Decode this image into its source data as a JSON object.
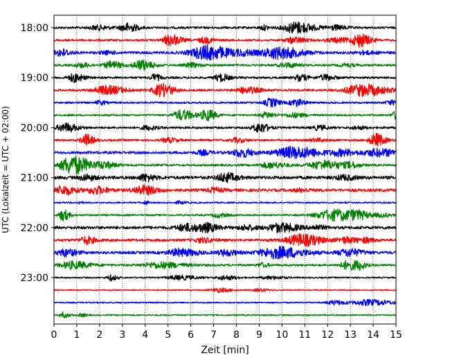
{
  "chart_data": {
    "type": "line",
    "title": "",
    "xlabel": "Zeit  [min]",
    "ylabel": "UTC (Lokalzeit = UTC + 02:00)",
    "xlim": [
      0,
      15
    ],
    "x_ticks": [
      0,
      1,
      2,
      3,
      4,
      5,
      6,
      7,
      8,
      9,
      10,
      11,
      12,
      13,
      14,
      15
    ],
    "x_grid": true,
    "y_ticks": [
      "18:00",
      "19:00",
      "20:00",
      "21:00",
      "22:00",
      "23:00"
    ],
    "trace_interval_min": 15,
    "trace_colors": [
      "#000000",
      "#ff0000",
      "#0000ff",
      "#008000"
    ],
    "series": [
      {
        "start_utc": "18:00",
        "color": "#000000",
        "bursts": [
          [
            1.9,
            0.4,
            3
          ],
          [
            3.2,
            0.35,
            6
          ],
          [
            9.2,
            0.2,
            3
          ],
          [
            10.6,
            0.6,
            8
          ],
          [
            12.3,
            0.4,
            3
          ]
        ],
        "noise": 1.5
      },
      {
        "start_utc": "18:15",
        "color": "#ff0000",
        "bursts": [
          [
            5.1,
            0.35,
            8
          ],
          [
            6.6,
            0.3,
            4
          ],
          [
            10.5,
            0.4,
            4
          ],
          [
            13.4,
            0.35,
            9
          ],
          [
            12.4,
            0.5,
            3
          ]
        ],
        "noise": 1.5
      },
      {
        "start_utc": "18:30",
        "color": "#0000ff",
        "bursts": [
          [
            0.3,
            0.3,
            5
          ],
          [
            2.3,
            0.3,
            2
          ],
          [
            6.7,
            0.8,
            10
          ],
          [
            9.8,
            0.8,
            8
          ],
          [
            8.3,
            0.4,
            3
          ],
          [
            13.6,
            0.4,
            2
          ]
        ],
        "noise": 1.8
      },
      {
        "start_utc": "18:45",
        "color": "#008000",
        "bursts": [
          [
            1.2,
            0.3,
            3
          ],
          [
            2.5,
            0.35,
            5
          ],
          [
            3.8,
            0.4,
            7
          ],
          [
            6.0,
            0.3,
            3
          ],
          [
            10.2,
            0.4,
            3
          ],
          [
            12.8,
            0.3,
            2
          ]
        ],
        "noise": 1.5
      },
      {
        "start_utc": "19:00",
        "color": "#000000",
        "bursts": [
          [
            0.9,
            0.3,
            6
          ],
          [
            4.4,
            0.2,
            5
          ],
          [
            7.3,
            0.3,
            5
          ],
          [
            10.8,
            0.3,
            4
          ],
          [
            11.9,
            0.3,
            4
          ]
        ],
        "noise": 1.5
      },
      {
        "start_utc": "19:15",
        "color": "#ff0000",
        "bursts": [
          [
            2.3,
            0.6,
            6
          ],
          [
            4.7,
            0.4,
            9
          ],
          [
            8.4,
            0.5,
            4
          ],
          [
            13.5,
            0.8,
            8
          ]
        ],
        "noise": 1.5
      },
      {
        "start_utc": "19:30",
        "color": "#0000ff",
        "bursts": [
          [
            2.0,
            0.2,
            3
          ],
          [
            9.5,
            0.3,
            6
          ],
          [
            10.6,
            0.3,
            5
          ],
          [
            14.8,
            0.3,
            3
          ]
        ],
        "noise": 1.3
      },
      {
        "start_utc": "19:45",
        "color": "#008000",
        "bursts": [
          [
            5.6,
            0.4,
            7
          ],
          [
            6.7,
            0.3,
            8
          ],
          [
            9.3,
            0.3,
            4
          ],
          [
            10.5,
            0.4,
            3
          ],
          [
            15.0,
            0.2,
            6
          ]
        ],
        "noise": 1.3
      },
      {
        "start_utc": "20:00",
        "color": "#000000",
        "bursts": [
          [
            0.5,
            0.4,
            6
          ],
          [
            9.0,
            0.3,
            7
          ],
          [
            4.1,
            0.3,
            3
          ],
          [
            11.6,
            0.3,
            3
          ],
          [
            13.3,
            0.3,
            2
          ]
        ],
        "noise": 1.5
      },
      {
        "start_utc": "20:15",
        "color": "#ff0000",
        "bursts": [
          [
            1.4,
            0.25,
            8
          ],
          [
            5.0,
            0.3,
            3
          ],
          [
            8.0,
            0.3,
            3
          ],
          [
            14.1,
            0.3,
            9
          ],
          [
            11.5,
            0.3,
            2
          ]
        ],
        "noise": 1.5
      },
      {
        "start_utc": "20:30",
        "color": "#0000ff",
        "bursts": [
          [
            8.2,
            0.4,
            6
          ],
          [
            10.5,
            0.9,
            8
          ],
          [
            14.2,
            0.7,
            5
          ],
          [
            6.5,
            0.3,
            3
          ],
          [
            12.6,
            0.5,
            4
          ]
        ],
        "noise": 1.8
      },
      {
        "start_utc": "20:45",
        "color": "#008000",
        "bursts": [
          [
            0.8,
            0.6,
            13
          ],
          [
            2.2,
            0.4,
            4
          ],
          [
            9.5,
            0.5,
            4
          ],
          [
            11.8,
            0.7,
            6
          ],
          [
            13.0,
            0.3,
            3
          ]
        ],
        "noise": 1.5
      },
      {
        "start_utc": "21:00",
        "color": "#000000",
        "bursts": [
          [
            1.4,
            0.3,
            4
          ],
          [
            4.0,
            0.3,
            5
          ],
          [
            7.5,
            0.4,
            6
          ],
          [
            12.7,
            0.4,
            3
          ]
        ],
        "noise": 2.2
      },
      {
        "start_utc": "21:15",
        "color": "#ff0000",
        "bursts": [
          [
            0.4,
            0.4,
            6
          ],
          [
            1.8,
            0.4,
            5
          ],
          [
            3.9,
            0.5,
            6
          ],
          [
            7.0,
            0.3,
            3
          ],
          [
            10.8,
            0.3,
            2
          ]
        ],
        "noise": 2.0
      },
      {
        "start_utc": "21:30",
        "color": "#0000ff",
        "bursts": [
          [
            1.1,
            0.1,
            2
          ],
          [
            4.0,
            0.1,
            3
          ],
          [
            5.5,
            0.2,
            2
          ]
        ],
        "noise": 1.0
      },
      {
        "start_utc": "21:45",
        "color": "#008000",
        "bursts": [
          [
            0.4,
            0.2,
            8
          ],
          [
            7.2,
            0.3,
            3
          ],
          [
            12.3,
            0.9,
            8
          ],
          [
            13.3,
            0.4,
            3
          ],
          [
            14.4,
            0.3,
            2
          ]
        ],
        "noise": 1.2
      },
      {
        "start_utc": "22:00",
        "color": "#000000",
        "bursts": [
          [
            5.8,
            0.5,
            5
          ],
          [
            6.7,
            0.4,
            5
          ],
          [
            9.9,
            0.6,
            6
          ],
          [
            8.4,
            0.4,
            3
          ],
          [
            11.5,
            0.3,
            3
          ]
        ],
        "noise": 2.0
      },
      {
        "start_utc": "22:15",
        "color": "#ff0000",
        "bursts": [
          [
            1.4,
            0.3,
            5
          ],
          [
            6.5,
            0.4,
            3
          ],
          [
            10.8,
            0.7,
            8
          ],
          [
            12.8,
            0.4,
            4
          ],
          [
            13.7,
            0.3,
            3
          ]
        ],
        "noise": 1.8
      },
      {
        "start_utc": "22:30",
        "color": "#0000ff",
        "bursts": [
          [
            0.5,
            0.4,
            5
          ],
          [
            5.5,
            0.6,
            5
          ],
          [
            7.5,
            0.4,
            4
          ],
          [
            9.8,
            0.9,
            8
          ],
          [
            12.9,
            0.5,
            5
          ]
        ],
        "noise": 1.8
      },
      {
        "start_utc": "22:45",
        "color": "#008000",
        "bursts": [
          [
            0.8,
            0.6,
            5
          ],
          [
            4.6,
            0.8,
            4
          ],
          [
            9.1,
            0.2,
            3
          ],
          [
            12.9,
            0.4,
            6
          ],
          [
            13.4,
            0.2,
            4
          ]
        ],
        "noise": 1.5
      },
      {
        "start_utc": "23:00",
        "color": "#000000",
        "bursts": [
          [
            2.5,
            0.2,
            4
          ],
          [
            5.5,
            0.6,
            3
          ],
          [
            7.5,
            0.4,
            3
          ],
          [
            9.5,
            0.5,
            2
          ]
        ],
        "noise": 1.0
      },
      {
        "start_utc": "23:15",
        "color": "#ff0000",
        "bursts": [
          [
            7.2,
            0.4,
            3
          ],
          [
            9.0,
            0.3,
            2
          ]
        ],
        "noise": 0.8
      },
      {
        "start_utc": "23:30",
        "color": "#0000ff",
        "bursts": [
          [
            12.3,
            0.4,
            3
          ],
          [
            13.8,
            0.8,
            4
          ]
        ],
        "noise": 0.9
      },
      {
        "start_utc": "23:45",
        "color": "#008000",
        "bursts": [
          [
            0.4,
            0.2,
            4
          ],
          [
            1.2,
            0.2,
            2
          ]
        ],
        "noise": 0.9
      }
    ]
  }
}
